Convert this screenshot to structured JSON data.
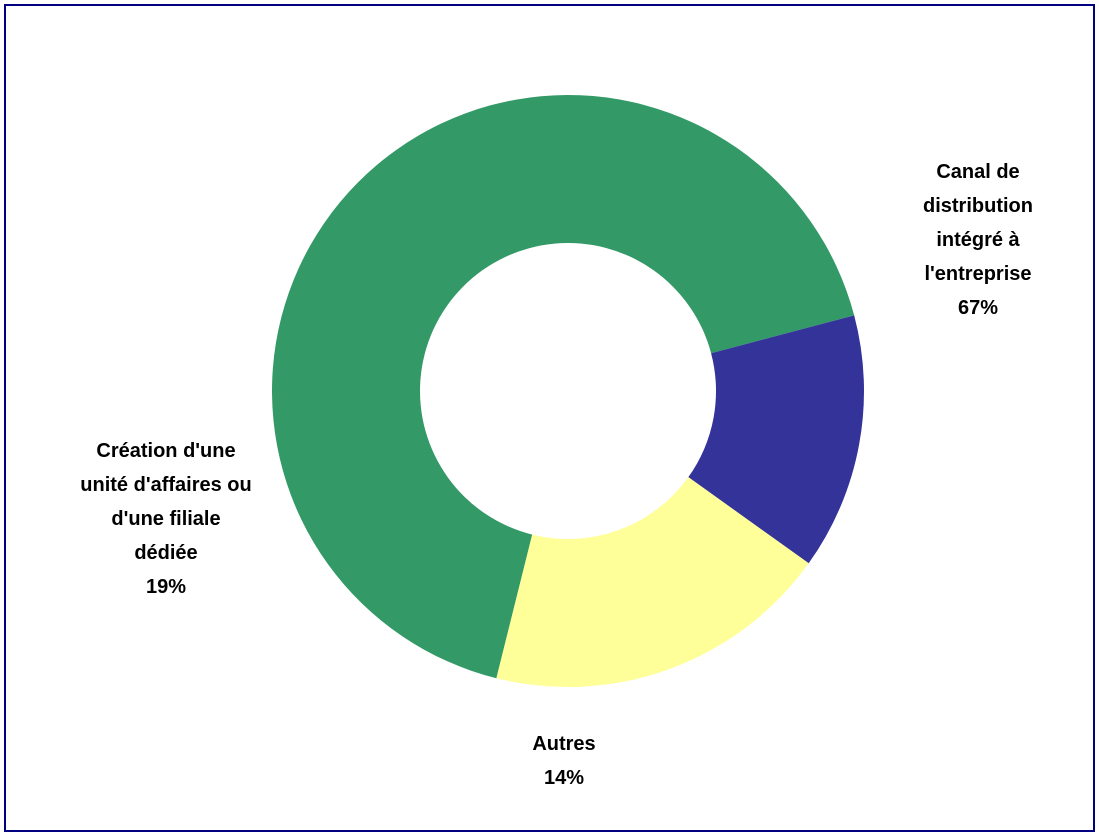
{
  "chart_data": {
    "type": "pie",
    "variant": "doughnut",
    "slices": [
      {
        "label_lines": [
          "Canal de",
          "distribution",
          "intégré à",
          "l'entreprise"
        ],
        "value": 67,
        "value_label": "67%",
        "color": "#339966"
      },
      {
        "label_lines": [
          "Autres"
        ],
        "value": 14,
        "value_label": "14%",
        "color": "#333399"
      },
      {
        "label_lines": [
          "Création d'une",
          "unité d'affaires ou",
          "d'une filiale",
          "dédiée"
        ],
        "value": 19,
        "value_label": "19%",
        "color": "#FFFF99"
      }
    ],
    "border_color": "#000080",
    "legend": "none"
  }
}
